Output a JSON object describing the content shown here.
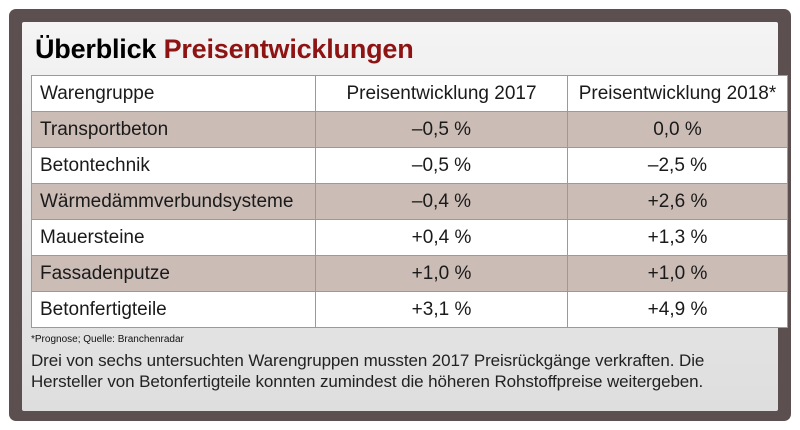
{
  "title": {
    "lead": "Überblick",
    "accent": "Preisentwicklungen"
  },
  "colors": {
    "accent": "#8e1414",
    "frame": "#5b4f4f",
    "row_shade": "#cbbcb6"
  },
  "table": {
    "headers": [
      "Warengruppe",
      "Preisentwicklung 2017",
      "Preisentwicklung 2018*"
    ],
    "rows": [
      {
        "group": "Transportbeton",
        "y2017": "–0,5 %",
        "y2018": "0,0 %"
      },
      {
        "group": "Betontechnik",
        "y2017": "–0,5 %",
        "y2018": "–2,5 %"
      },
      {
        "group": "Wärmedämmverbundsysteme",
        "y2017": "–0,4 %",
        "y2018": "+2,6 %"
      },
      {
        "group": "Mauersteine",
        "y2017": "+0,4 %",
        "y2018": "+1,3 %"
      },
      {
        "group": "Fassadenputze",
        "y2017": "+1,0 %",
        "y2018": "+1,0 %"
      },
      {
        "group": "Betonfertigteile",
        "y2017": "+3,1 %",
        "y2018": "+4,9 %"
      }
    ]
  },
  "footnote": "*Prognose; Quelle: Branchenradar",
  "summary": "Drei von sechs untersuchten Warengruppen mussten 2017 Preisrückgänge verkraften. Die Hersteller von Betonfertigteile konnten zumindest die höheren Rohstoffpreise weitergeben."
}
